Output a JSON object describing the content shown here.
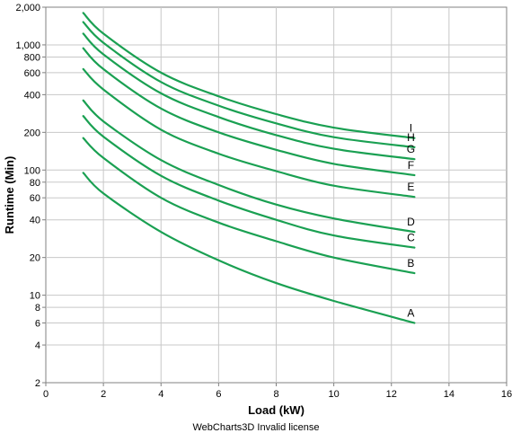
{
  "footer_text": "WebCharts3D Invalid license",
  "chart_data": {
    "type": "line",
    "title": "",
    "xlabel": "Load (kW)",
    "ylabel": "Runtime (Min)",
    "xlim": [
      0,
      16
    ],
    "ylim": [
      2,
      2000
    ],
    "y_scale": "log",
    "grid": true,
    "legend": "none",
    "line_color": "#1aa052",
    "x_ticks": [
      0,
      2,
      4,
      6,
      8,
      10,
      12,
      14,
      16
    ],
    "x_tick_labels": [
      "0",
      "2",
      "4",
      "6",
      "8",
      "10",
      "12",
      "14",
      "16"
    ],
    "y_ticks": [
      2,
      4,
      6,
      8,
      10,
      20,
      40,
      60,
      80,
      100,
      200,
      400,
      600,
      800,
      1000,
      2000
    ],
    "y_tick_labels": [
      "2",
      "4",
      "6",
      "8",
      "10",
      "20",
      "40",
      "60",
      "80",
      "100",
      "200",
      "400",
      "600",
      "800",
      "1,000",
      "2,000"
    ],
    "series": [
      {
        "name": "A",
        "x": [
          1.3,
          2,
          4,
          6,
          8,
          10,
          12.8
        ],
        "y": [
          95,
          65,
          32,
          19,
          12.5,
          9,
          6
        ]
      },
      {
        "name": "B",
        "x": [
          1.3,
          2,
          4,
          6,
          8,
          10,
          12.8
        ],
        "y": [
          180,
          125,
          60,
          38,
          27,
          20,
          15
        ]
      },
      {
        "name": "C",
        "x": [
          1.3,
          2,
          4,
          6,
          8,
          10,
          12.8
        ],
        "y": [
          270,
          185,
          90,
          57,
          40,
          30,
          24
        ]
      },
      {
        "name": "D",
        "x": [
          1.3,
          2,
          4,
          6,
          8,
          10,
          12.8
        ],
        "y": [
          360,
          245,
          120,
          76,
          53,
          41,
          32
        ]
      },
      {
        "name": "E",
        "x": [
          1.3,
          2,
          4,
          6,
          8,
          10,
          12.8
        ],
        "y": [
          640,
          440,
          210,
          135,
          98,
          75,
          61
        ]
      },
      {
        "name": "F",
        "x": [
          1.3,
          2,
          4,
          6,
          8,
          10,
          12.8
        ],
        "y": [
          940,
          640,
          310,
          200,
          145,
          112,
          91
        ]
      },
      {
        "name": "G",
        "x": [
          1.3,
          2,
          4,
          6,
          8,
          10,
          12.8
        ],
        "y": [
          1230,
          840,
          410,
          265,
          190,
          148,
          122
        ]
      },
      {
        "name": "H",
        "x": [
          1.3,
          2,
          4,
          6,
          8,
          10,
          12.8
        ],
        "y": [
          1520,
          1040,
          505,
          327,
          236,
          183,
          152
        ]
      },
      {
        "name": "I",
        "x": [
          1.3,
          2,
          4,
          6,
          8,
          10,
          12.8
        ],
        "y": [
          1800,
          1230,
          600,
          388,
          280,
          218,
          180
        ]
      }
    ]
  }
}
